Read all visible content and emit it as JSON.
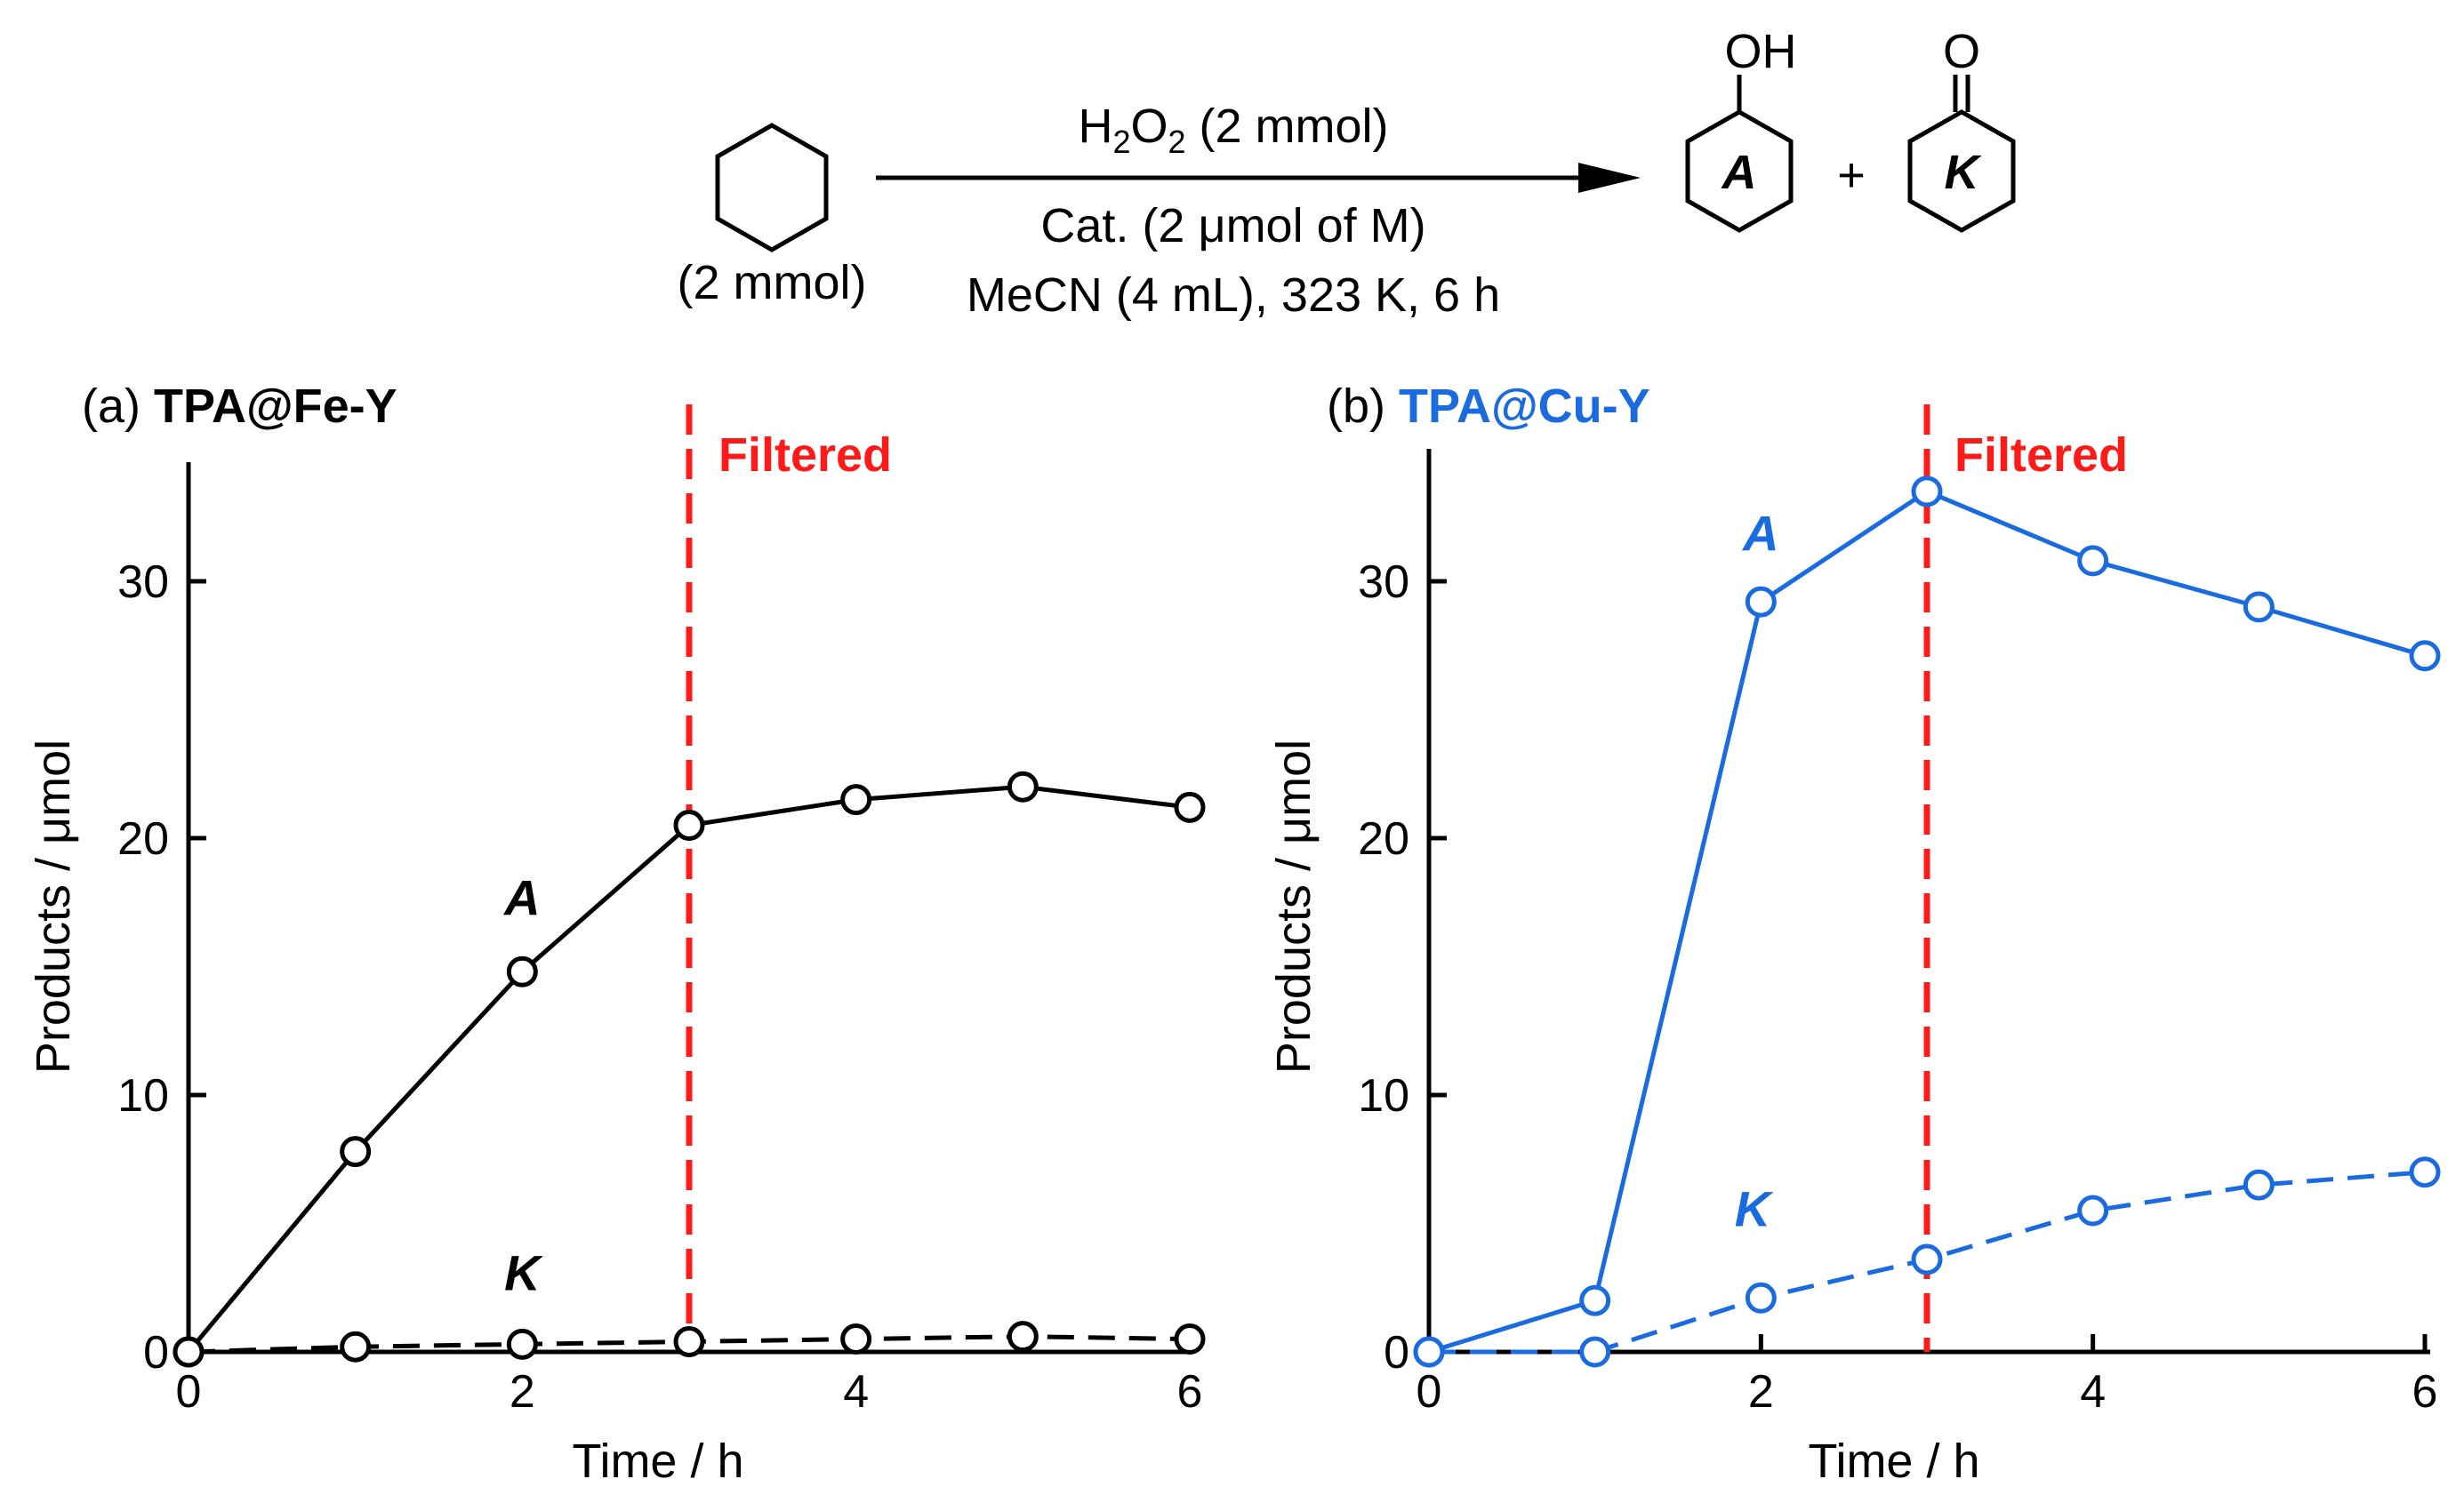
{
  "scheme": {
    "reagent_line1": "H2O2 (2 mmol)",
    "reagent_line2": "Cat. (2 μmol of M)",
    "reagent_line3": "MeCN (4 mL), 323 K, 6 h",
    "substrate_amount": "(2 mmol)",
    "product_a_label": "A",
    "product_a_group": "OH",
    "product_k_label": "K",
    "product_k_group": "O",
    "plus": "+"
  },
  "chart_data": [
    {
      "type": "line",
      "panel_label": "(a)",
      "title": "TPA@Fe-Y",
      "title_color": "#000000",
      "color": "#000000",
      "xlabel": "Time / h",
      "ylabel": "Products / μmol",
      "xlim": [
        0,
        6
      ],
      "ylim": [
        0,
        35
      ],
      "xticks": [
        0,
        2,
        4,
        6
      ],
      "yticks": [
        0,
        10,
        20,
        30
      ],
      "filter_time": 3,
      "filter_label": "Filtered",
      "filter_color": "#ff1a1a",
      "series": [
        {
          "name": "A",
          "style": "solid",
          "label_pos": [
            2.0,
            17
          ],
          "x": [
            0,
            1,
            2,
            3,
            4,
            5,
            6
          ],
          "y": [
            0,
            7.8,
            14.8,
            20.5,
            21.5,
            22.0,
            21.2
          ]
        },
        {
          "name": "K",
          "style": "dashed",
          "label_pos": [
            2.0,
            2.4
          ],
          "x": [
            0,
            1,
            2,
            3,
            4,
            5,
            6
          ],
          "y": [
            0,
            0.2,
            0.3,
            0.4,
            0.5,
            0.6,
            0.5
          ]
        }
      ]
    },
    {
      "type": "line",
      "panel_label": "(b)",
      "title": "TPA@Cu-Y",
      "title_color": "#1a6be0",
      "color": "#1a6be0",
      "xlabel": "Time / h",
      "ylabel": "Products / μmol",
      "xlim": [
        0,
        6
      ],
      "ylim": [
        0,
        35
      ],
      "xticks": [
        0,
        2,
        4,
        6
      ],
      "yticks": [
        0,
        10,
        20,
        30
      ],
      "filter_time": 3,
      "filter_label": "Filtered",
      "filter_color": "#ff1a1a",
      "series": [
        {
          "name": "A",
          "style": "solid",
          "label_pos": [
            2.0,
            31.2
          ],
          "x": [
            0,
            1,
            2,
            3,
            4,
            5,
            6
          ],
          "y": [
            0,
            2.0,
            29.2,
            33.5,
            30.8,
            29.0,
            27.1
          ]
        },
        {
          "name": "K",
          "style": "dashed",
          "label_pos": [
            1.95,
            4.9
          ],
          "x": [
            0,
            1,
            2,
            3,
            4,
            5,
            6
          ],
          "y": [
            0,
            0,
            2.1,
            3.6,
            5.5,
            6.5,
            7.0
          ]
        }
      ]
    }
  ]
}
